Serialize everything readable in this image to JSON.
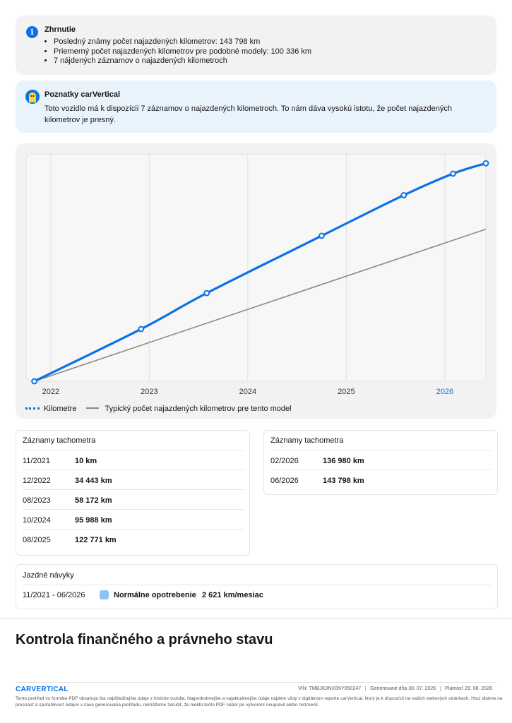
{
  "summary": {
    "title": "Zhrnutie",
    "icon": "info-icon",
    "items": [
      "Posledný známy počet najazdených kilometrov: 143 798 km",
      "Priemerný počet najazdených kilometrov pre podobné modely: 100 336 km",
      "7 nájdených záznamov o najazdených kilometroch"
    ]
  },
  "insight": {
    "title": "Poznatky carVertical",
    "icon": "robot-icon",
    "text": "Toto vozidlo má k dispozícii 7 záznamov o najazdených kilometroch. To nám dáva vysokú istotu, že počet najazdených kilometrov je presný."
  },
  "chart_data": {
    "type": "line",
    "x_ticks": [
      "2022",
      "2023",
      "2024",
      "2025",
      "2026"
    ],
    "highlighted_tick": "2026",
    "xlim": [
      "2021-10",
      "2026-06"
    ],
    "ylim": [
      0,
      150000
    ],
    "grid": true,
    "legend_position": "bottom-left",
    "series": [
      {
        "name": "Kilometre",
        "color": "#0a72e6",
        "points": [
          {
            "x": "2021-11",
            "y": 10
          },
          {
            "x": "2022-12",
            "y": 34443
          },
          {
            "x": "2023-08",
            "y": 58172
          },
          {
            "x": "2024-10",
            "y": 95988
          },
          {
            "x": "2025-08",
            "y": 122771
          },
          {
            "x": "2026-02",
            "y": 136980
          },
          {
            "x": "2026-06",
            "y": 143798
          }
        ]
      },
      {
        "name": "Typický počet najazdených kilometrov pre tento model",
        "color": "#8a8a8a",
        "points": [
          {
            "x": "2021-11",
            "y": 10
          },
          {
            "x": "2026-06",
            "y": 100336
          }
        ]
      }
    ]
  },
  "records_left": {
    "title": "Záznamy tachometra",
    "rows": [
      {
        "date": "11/2021",
        "value": "10 km"
      },
      {
        "date": "12/2022",
        "value": "34 443 km"
      },
      {
        "date": "08/2023",
        "value": "58 172 km"
      },
      {
        "date": "10/2024",
        "value": "95 988 km"
      },
      {
        "date": "08/2025",
        "value": "122 771 km"
      }
    ]
  },
  "records_right": {
    "title": "Záznamy tachometra",
    "rows": [
      {
        "date": "02/2026",
        "value": "136 980 km"
      },
      {
        "date": "06/2026",
        "value": "143 798 km"
      }
    ]
  },
  "driving": {
    "title": "Jazdné návyky",
    "range": "11/2021 - 06/2026",
    "level": "Normálne opotrebenie",
    "level_color": "#8ec2f2",
    "rate": "2 621 km/mesiac"
  },
  "section_title": "Kontrola finančného a právneho stavu",
  "footer": {
    "logo": "CARVERTICAL",
    "vin": "VIN: TMBJK0NX0NY050247",
    "generated": "Generované dňa 30. 07. 2026",
    "valid": "Platnosť 29. 08. 2026",
    "disclaimer": "Tento prehľad vo formáte PDF obsahuje iba najdôležitejšie údaje z histórie vozidla. Najpodrobnejšie a najaktuálnejšie údaje nájdete vždy v digitálnom reporte carVertical, ktorý je k dispozícii na našich webových stránkach. Hoci dbáme na presnosť a spoľahlivosť údajov v čase generovania prehľadu, nemôžeme zaručiť, že niekto tento PDF súbor po vytvorení neupravil alebo nezmenil."
  }
}
